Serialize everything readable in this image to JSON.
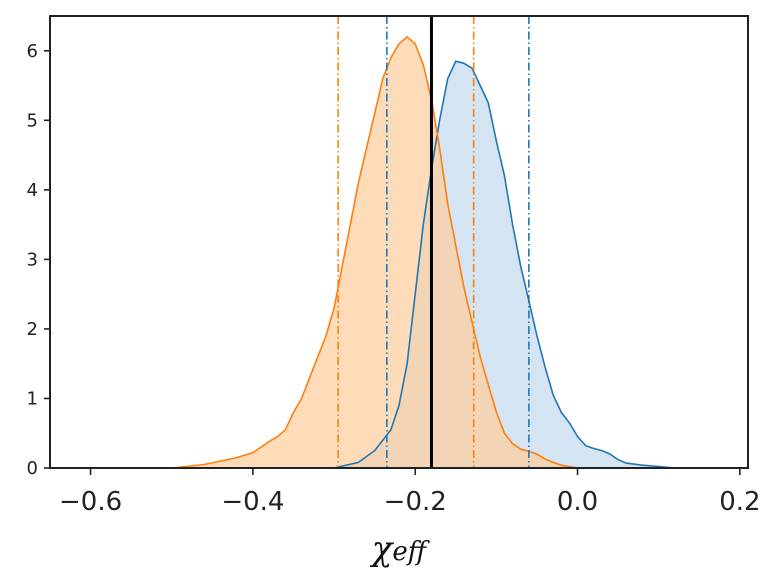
{
  "chart_data": {
    "type": "area",
    "xlabel": "χ",
    "xlabel_sub": "eff",
    "ylabel": "",
    "xlim": [
      -0.65,
      0.21
    ],
    "ylim": [
      0,
      6.5
    ],
    "xticks": [
      -0.6,
      -0.4,
      -0.2,
      0.0,
      0.2
    ],
    "xtick_labels": [
      "−0.6",
      "−0.4",
      "−0.2",
      "0.0",
      "0.2"
    ],
    "yticks": [
      0,
      1,
      2,
      3,
      4,
      5,
      6
    ],
    "ytick_labels": [
      "0",
      "1",
      "2",
      "3",
      "4",
      "5",
      "6"
    ],
    "grid": false,
    "series": [
      {
        "color": "#1f77b4",
        "fill": "#c6dbef",
        "x": [
          -0.3,
          -0.27,
          -0.25,
          -0.23,
          -0.22,
          -0.21,
          -0.2,
          -0.19,
          -0.18,
          -0.17,
          -0.16,
          -0.15,
          -0.14,
          -0.13,
          -0.12,
          -0.11,
          -0.1,
          -0.09,
          -0.08,
          -0.07,
          -0.06,
          -0.05,
          -0.04,
          -0.03,
          -0.02,
          -0.01,
          0.0,
          0.01,
          0.02,
          0.03,
          0.04,
          0.05,
          0.06,
          0.08,
          0.1,
          0.12
        ],
        "y": [
          0.0,
          0.08,
          0.25,
          0.55,
          0.9,
          1.5,
          2.5,
          3.5,
          4.3,
          5.0,
          5.6,
          5.85,
          5.82,
          5.75,
          5.5,
          5.25,
          4.7,
          4.2,
          3.5,
          2.9,
          2.4,
          1.9,
          1.45,
          1.05,
          0.8,
          0.65,
          0.45,
          0.32,
          0.28,
          0.25,
          0.2,
          0.12,
          0.07,
          0.04,
          0.02,
          0.0
        ]
      },
      {
        "color": "#ff7f0e",
        "fill": "#fdd0a2",
        "x": [
          -0.5,
          -0.46,
          -0.42,
          -0.4,
          -0.39,
          -0.38,
          -0.37,
          -0.36,
          -0.35,
          -0.34,
          -0.33,
          -0.32,
          -0.31,
          -0.3,
          -0.29,
          -0.28,
          -0.27,
          -0.26,
          -0.25,
          -0.24,
          -0.23,
          -0.22,
          -0.21,
          -0.2,
          -0.19,
          -0.18,
          -0.17,
          -0.16,
          -0.15,
          -0.14,
          -0.13,
          -0.12,
          -0.11,
          -0.1,
          -0.09,
          -0.08,
          -0.07,
          -0.06,
          -0.05,
          -0.04,
          -0.03,
          -0.02,
          0.0
        ],
        "y": [
          0.0,
          0.05,
          0.15,
          0.22,
          0.3,
          0.38,
          0.45,
          0.55,
          0.8,
          1.0,
          1.3,
          1.6,
          1.9,
          2.3,
          2.9,
          3.5,
          4.1,
          4.6,
          5.1,
          5.6,
          5.9,
          6.1,
          6.2,
          6.1,
          5.8,
          5.3,
          4.6,
          3.8,
          3.2,
          2.6,
          2.1,
          1.6,
          1.2,
          0.8,
          0.5,
          0.35,
          0.27,
          0.24,
          0.2,
          0.13,
          0.08,
          0.04,
          0.0
        ]
      }
    ],
    "vlines": [
      {
        "x": -0.18,
        "color": "#000000",
        "style": "solid"
      },
      {
        "x": -0.295,
        "color": "#ff7f0e",
        "style": "dashdot"
      },
      {
        "x": -0.128,
        "color": "#ff7f0e",
        "style": "dashdot"
      },
      {
        "x": -0.235,
        "color": "#1f77b4",
        "style": "dashdot"
      },
      {
        "x": -0.06,
        "color": "#1f77b4",
        "style": "dashdot"
      }
    ]
  }
}
